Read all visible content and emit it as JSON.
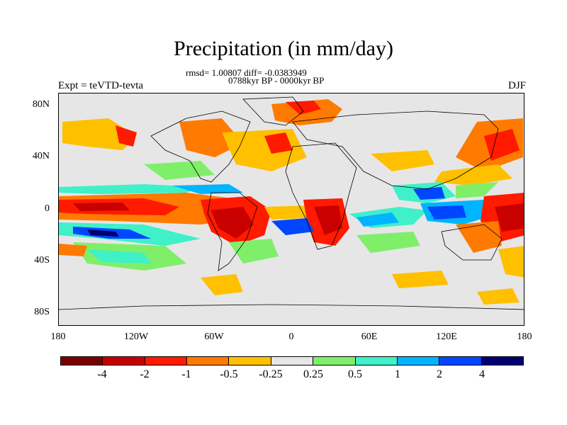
{
  "title": "Precipitation (in mm/day)",
  "stats_line": "rmsd= 1.00807 diff= -0.0383949",
  "period_line": "0788kyr BP - 0000kyr BP",
  "left_label": "Expt = teVTD-tevta",
  "right_label": "DJF",
  "lat_labels": [
    "80N",
    "40N",
    "0",
    "40S",
    "80S"
  ],
  "lon_labels": [
    "180",
    "120W",
    "60W",
    "0",
    "60E",
    "120E",
    "180"
  ],
  "colorbar": {
    "labels": [
      "-4",
      "-2",
      "-1",
      "-0.5",
      "-0.25",
      "0.25",
      "0.5",
      "1",
      "2",
      "4"
    ],
    "colors": [
      "#7a0000",
      "#c80000",
      "#ff1a00",
      "#ff7a00",
      "#ffc000",
      "#e6e6e6",
      "#7fef6a",
      "#3ff0c8",
      "#00b4ff",
      "#0046ff",
      "#000070"
    ]
  }
}
